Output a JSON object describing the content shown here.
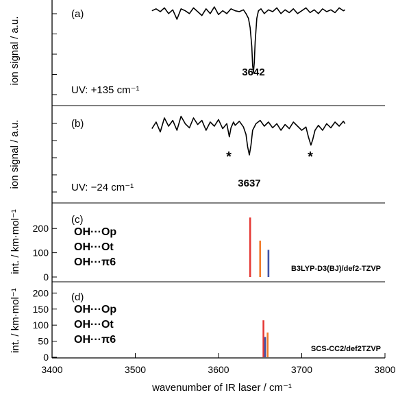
{
  "x_axis": {
    "label": "wavenumber of IR laser / cm⁻¹",
    "range": [
      3400,
      3800
    ],
    "ticks": [
      3400,
      3500,
      3600,
      3700,
      3800
    ]
  },
  "chart_data": [
    {
      "type": "line",
      "panel_label": "(a)",
      "ylabel": "ion signal / a.u.",
      "yticks": 0,
      "annotation": "UV:  +135 cm⁻¹",
      "peak_label": "3642",
      "peak_label_color": "#F07A2A",
      "peak_position": 3642,
      "line_color": "#000000",
      "series": [
        {
          "x": [
            3520,
            3525,
            3530,
            3535,
            3540,
            3545,
            3550,
            3555,
            3560,
            3565,
            3570,
            3575,
            3580,
            3585,
            3590,
            3595,
            3600,
            3605,
            3610,
            3615,
            3620,
            3625,
            3630,
            3633,
            3636,
            3638,
            3640,
            3641,
            3642,
            3643,
            3644,
            3646,
            3648,
            3651,
            3655,
            3660,
            3665,
            3670,
            3675,
            3680,
            3685,
            3690,
            3695,
            3700,
            3705,
            3710,
            3715,
            3720,
            3725,
            3730,
            3735,
            3740,
            3745,
            3750,
            3752
          ],
          "y": [
            0.93,
            0.95,
            0.92,
            0.96,
            0.9,
            0.94,
            0.84,
            0.95,
            0.93,
            0.9,
            0.96,
            0.92,
            0.88,
            0.95,
            0.9,
            0.97,
            0.89,
            0.93,
            0.9,
            0.95,
            0.93,
            0.92,
            0.94,
            0.9,
            0.85,
            0.75,
            0.55,
            0.35,
            0.28,
            0.38,
            0.6,
            0.85,
            0.93,
            0.95,
            0.9,
            0.94,
            0.92,
            0.96,
            0.9,
            0.94,
            0.91,
            0.95,
            0.9,
            0.93,
            0.96,
            0.91,
            0.94,
            0.9,
            0.95,
            0.92,
            0.94,
            0.91,
            0.96,
            0.93,
            0.94
          ]
        }
      ]
    },
    {
      "type": "line",
      "panel_label": "(b)",
      "ylabel": "ion signal / a.u.",
      "yticks": 0,
      "annotation": "UV:  −24 cm⁻¹",
      "peak_label": "3637",
      "peak_label_color": "#3F52A8",
      "peak_position": 3637,
      "line_color": "#000000",
      "star_positions": [
        3614,
        3712
      ],
      "star_text": "*",
      "series": [
        {
          "x": [
            3520,
            3525,
            3530,
            3535,
            3540,
            3545,
            3550,
            3555,
            3560,
            3565,
            3570,
            3575,
            3580,
            3585,
            3590,
            3595,
            3600,
            3605,
            3610,
            3613,
            3615,
            3618,
            3620,
            3625,
            3630,
            3633,
            3635,
            3637,
            3639,
            3641,
            3645,
            3650,
            3655,
            3660,
            3665,
            3670,
            3675,
            3680,
            3685,
            3690,
            3695,
            3700,
            3705,
            3708,
            3711,
            3713,
            3716,
            3720,
            3725,
            3730,
            3735,
            3740,
            3745,
            3750,
            3752
          ],
          "y": [
            0.82,
            0.9,
            0.78,
            0.95,
            0.85,
            0.92,
            0.8,
            0.97,
            0.88,
            0.83,
            0.95,
            0.87,
            0.92,
            0.8,
            0.9,
            0.85,
            0.93,
            0.82,
            0.88,
            0.72,
            0.83,
            0.9,
            0.86,
            0.91,
            0.84,
            0.75,
            0.6,
            0.5,
            0.62,
            0.8,
            0.88,
            0.92,
            0.85,
            0.9,
            0.83,
            0.88,
            0.8,
            0.87,
            0.82,
            0.9,
            0.85,
            0.8,
            0.84,
            0.72,
            0.62,
            0.68,
            0.8,
            0.86,
            0.8,
            0.88,
            0.83,
            0.9,
            0.85,
            0.91,
            0.88
          ]
        }
      ]
    },
    {
      "type": "bar",
      "panel_label": "(c)",
      "ylabel": "int. / km·mol⁻¹",
      "ylim": [
        0,
        260
      ],
      "yticks": [
        0,
        100,
        200
      ],
      "method": "B3LYP-D3(BJ)/def2-TZVP",
      "legend": [
        {
          "name": "OH···Op",
          "color": "#E53935"
        },
        {
          "name": "OH···Ot",
          "color": "#F07A2A"
        },
        {
          "name": "OH···π6",
          "color": "#3F52A8"
        }
      ],
      "bars": [
        {
          "x": 3638,
          "value": 245,
          "color": "#E53935"
        },
        {
          "x": 3650,
          "value": 150,
          "color": "#F07A2A"
        },
        {
          "x": 3660,
          "value": 112,
          "color": "#3F52A8"
        }
      ]
    },
    {
      "type": "bar",
      "panel_label": "(d)",
      "ylabel": "int. / km·mol⁻¹",
      "ylim": [
        0,
        205
      ],
      "yticks": [
        0,
        50,
        100,
        150,
        200
      ],
      "method": "SCS-CC2/def2TZVP",
      "legend": [
        {
          "name": "OH···Op",
          "color": "#E53935"
        },
        {
          "name": "OH···Ot",
          "color": "#F07A2A"
        },
        {
          "name": "OH···π6",
          "color": "#3F52A8"
        }
      ],
      "bars": [
        {
          "x": 3654,
          "value": 115,
          "color": "#E53935"
        },
        {
          "x": 3659,
          "value": 77,
          "color": "#F07A2A"
        },
        {
          "x": 3656,
          "value": 63,
          "color": "#3F52A8"
        }
      ]
    }
  ]
}
